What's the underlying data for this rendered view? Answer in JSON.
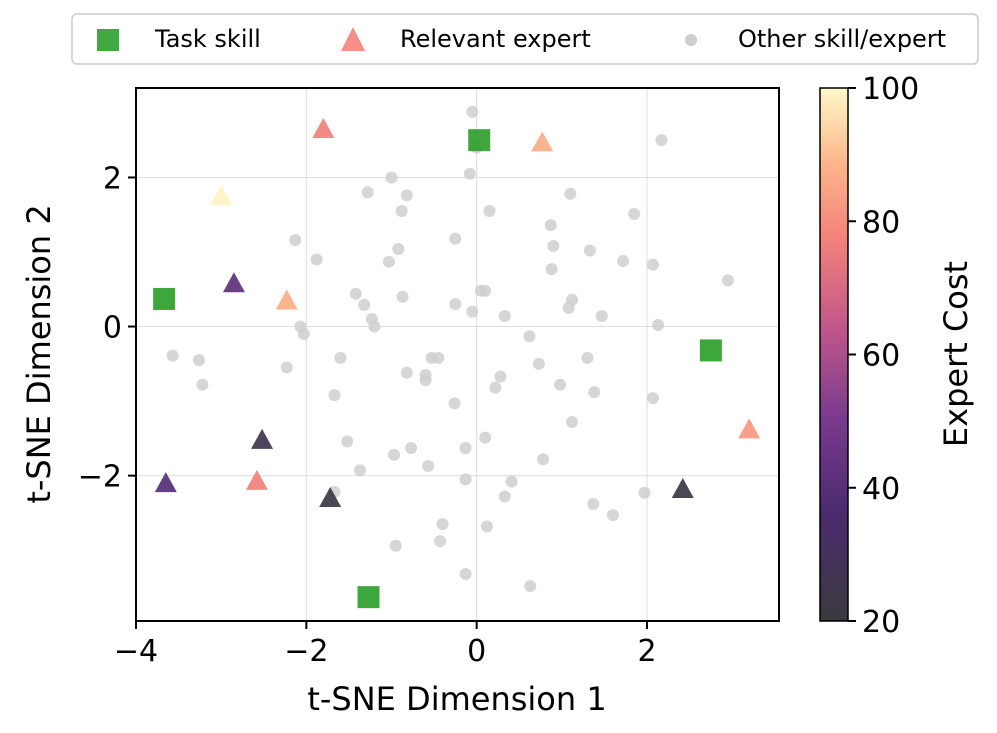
{
  "chart_data": {
    "type": "scatter",
    "xlabel": "t-SNE Dimension 1",
    "ylabel": "t-SNE Dimension 2",
    "xlim": [
      -4.0,
      3.55
    ],
    "ylim": [
      -3.95,
      3.2
    ],
    "xticks": [
      -4,
      -2,
      0,
      2
    ],
    "yticks": [
      -2,
      0,
      2
    ],
    "xtick_labels": [
      "−4",
      "−2",
      "0",
      "2"
    ],
    "ytick_labels": [
      "−2",
      "0",
      "2"
    ],
    "grid": true,
    "legend": {
      "position": "top",
      "entries": [
        {
          "label": "Task skill",
          "marker": "square",
          "color": "#2ca02c"
        },
        {
          "label": "Relevant expert",
          "marker": "triangle",
          "color": "#f4837a"
        },
        {
          "label": "Other skill/expert",
          "marker": "circle",
          "color": "#cfcfcf"
        }
      ]
    },
    "colorbar": {
      "label": "Expert Cost",
      "min": 20,
      "max": 100,
      "ticks": [
        20,
        40,
        60,
        80,
        100
      ],
      "tick_labels": [
        "20",
        "40",
        "60",
        "80",
        "100"
      ],
      "colormap": "magma"
    },
    "series": [
      {
        "name": "Task skill",
        "marker": "square",
        "color": "#2ca02c",
        "points": [
          [
            0.03,
            2.5
          ],
          [
            -3.67,
            0.37
          ],
          [
            2.75,
            -0.32
          ],
          [
            -1.27,
            -3.63
          ]
        ]
      },
      {
        "name": "Relevant expert",
        "marker": "triangle",
        "points": [
          {
            "x": -1.8,
            "y": 2.65,
            "cost": 77
          },
          {
            "x": 0.77,
            "y": 2.47,
            "cost": 87
          },
          {
            "x": -3.0,
            "y": 1.75,
            "cost": 99
          },
          {
            "x": -2.85,
            "y": 0.58,
            "cost": 42
          },
          {
            "x": -2.23,
            "y": 0.35,
            "cost": 87
          },
          {
            "x": -2.52,
            "y": -1.52,
            "cost": 25
          },
          {
            "x": -3.65,
            "y": -2.1,
            "cost": 40
          },
          {
            "x": -2.58,
            "y": -2.07,
            "cost": 77
          },
          {
            "x": -1.72,
            "y": -2.3,
            "cost": 22
          },
          {
            "x": 2.42,
            "y": -2.18,
            "cost": 22
          },
          {
            "x": 3.2,
            "y": -1.38,
            "cost": 82
          }
        ]
      },
      {
        "name": "Other skill/expert",
        "marker": "circle",
        "color": "#cfcfcf",
        "points": [
          [
            -0.05,
            2.88
          ],
          [
            0.0,
            2.4
          ],
          [
            -0.08,
            2.05
          ],
          [
            2.17,
            2.5
          ],
          [
            -1.0,
            2.0
          ],
          [
            -1.28,
            1.8
          ],
          [
            -0.82,
            1.76
          ],
          [
            -0.88,
            1.55
          ],
          [
            0.15,
            1.55
          ],
          [
            1.1,
            1.78
          ],
          [
            1.85,
            1.51
          ],
          [
            0.87,
            1.36
          ],
          [
            -2.13,
            1.16
          ],
          [
            -0.25,
            1.18
          ],
          [
            0.9,
            1.08
          ],
          [
            1.33,
            1.02
          ],
          [
            -0.92,
            1.04
          ],
          [
            -1.88,
            0.9
          ],
          [
            -1.03,
            0.87
          ],
          [
            1.72,
            0.88
          ],
          [
            2.07,
            0.83
          ],
          [
            0.88,
            0.77
          ],
          [
            2.95,
            0.62
          ],
          [
            -1.42,
            0.44
          ],
          [
            -0.87,
            0.4
          ],
          [
            0.05,
            0.48
          ],
          [
            0.1,
            0.48
          ],
          [
            1.12,
            0.36
          ],
          [
            -0.25,
            0.3
          ],
          [
            -1.32,
            0.29
          ],
          [
            -0.05,
            0.2
          ],
          [
            0.33,
            0.14
          ],
          [
            1.08,
            0.25
          ],
          [
            1.47,
            0.14
          ],
          [
            -1.23,
            0.1
          ],
          [
            -2.07,
            0.0
          ],
          [
            -1.2,
            0.0
          ],
          [
            2.13,
            0.02
          ],
          [
            -2.03,
            -0.1
          ],
          [
            0.62,
            -0.13
          ],
          [
            -3.57,
            -0.39
          ],
          [
            -3.26,
            -0.45
          ],
          [
            -1.6,
            -0.42
          ],
          [
            -0.53,
            -0.42
          ],
          [
            -0.45,
            -0.42
          ],
          [
            0.73,
            -0.5
          ],
          [
            1.3,
            -0.42
          ],
          [
            -2.23,
            -0.55
          ],
          [
            -0.82,
            -0.62
          ],
          [
            -0.6,
            -0.65
          ],
          [
            0.28,
            -0.67
          ],
          [
            -3.22,
            -0.78
          ],
          [
            0.22,
            -0.82
          ],
          [
            0.98,
            -0.78
          ],
          [
            -0.6,
            -0.72
          ],
          [
            -1.67,
            -0.92
          ],
          [
            1.38,
            -0.88
          ],
          [
            -0.26,
            -1.03
          ],
          [
            2.07,
            -0.96
          ],
          [
            1.12,
            -1.28
          ],
          [
            0.1,
            -1.49
          ],
          [
            -1.52,
            -1.54
          ],
          [
            -0.77,
            -1.63
          ],
          [
            -0.13,
            -1.63
          ],
          [
            -0.97,
            -1.72
          ],
          [
            0.78,
            -1.78
          ],
          [
            -0.57,
            -1.87
          ],
          [
            -1.37,
            -1.93
          ],
          [
            -0.13,
            -2.05
          ],
          [
            0.41,
            -2.08
          ],
          [
            -1.67,
            -2.22
          ],
          [
            0.33,
            -2.28
          ],
          [
            1.97,
            -2.23
          ],
          [
            1.37,
            -2.38
          ],
          [
            1.6,
            -2.53
          ],
          [
            -0.4,
            -2.65
          ],
          [
            0.12,
            -2.68
          ],
          [
            -0.43,
            -2.88
          ],
          [
            -0.95,
            -2.94
          ],
          [
            -0.13,
            -3.32
          ],
          [
            0.63,
            -3.48
          ]
        ]
      }
    ]
  }
}
